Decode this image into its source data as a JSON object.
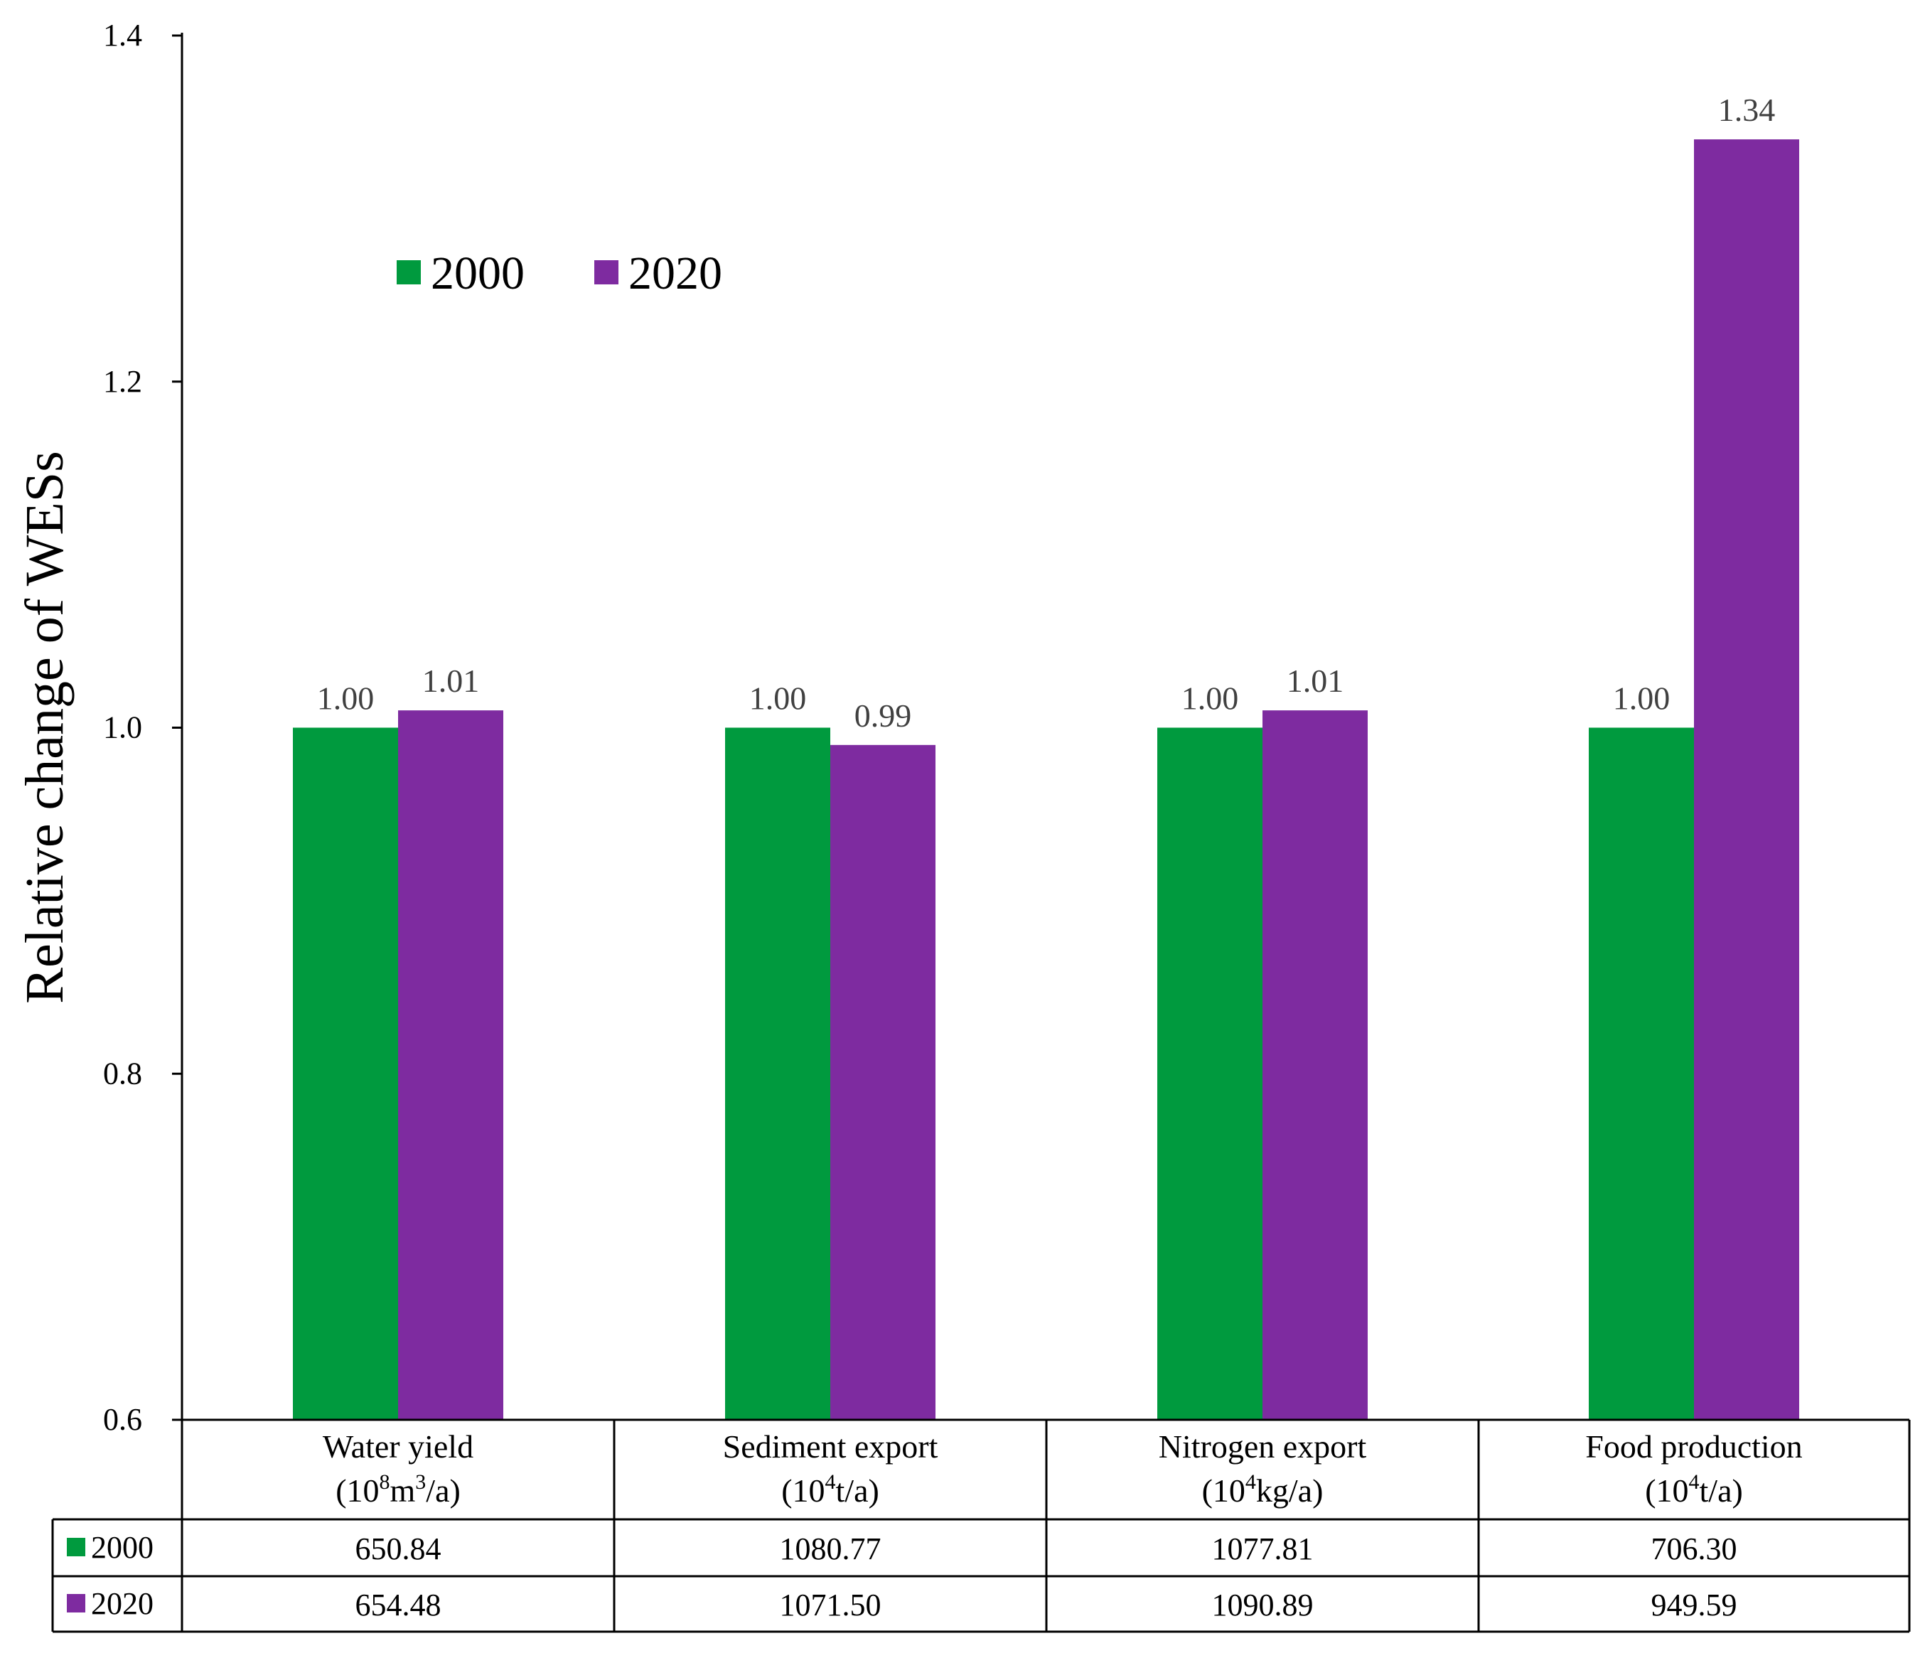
{
  "chart_data": {
    "type": "bar",
    "ylabel": "Relative change of  WESs",
    "ylim": [
      0.6,
      1.4
    ],
    "yticks": [
      "0.6",
      "0.8",
      "1.0",
      "1.2",
      "1.4"
    ],
    "ytick_values": [
      0.6,
      0.8,
      1.0,
      1.2,
      1.4
    ],
    "legend_position": "top-left",
    "categories": [
      {
        "name": "Water yield",
        "unit_pre": "(10",
        "unit_sup": "8",
        "unit_mid": "m",
        "unit_sup2": "3",
        "unit_post": "/a)"
      },
      {
        "name": "Sediment export",
        "unit_pre": "(10",
        "unit_sup": "4",
        "unit_mid": "t/a)",
        "unit_sup2": "",
        "unit_post": ""
      },
      {
        "name": "Nitrogen export",
        "unit_pre": "(10",
        "unit_sup": "4",
        "unit_mid": "kg/a)",
        "unit_sup2": "",
        "unit_post": ""
      },
      {
        "name": "Food production",
        "unit_pre": "(10",
        "unit_sup": "4",
        "unit_mid": "t/a)",
        "unit_sup2": "",
        "unit_post": ""
      }
    ],
    "series": [
      {
        "name": "2000",
        "color": "#009a3e",
        "values": [
          1.0,
          1.0,
          1.0,
          1.0
        ],
        "labels": [
          "1.00",
          "1.00",
          "1.00",
          "1.00"
        ],
        "table_values": [
          "650.84",
          "1080.77",
          "1077.81",
          "706.30"
        ]
      },
      {
        "name": "2020",
        "color": "#7e2ba0",
        "values": [
          1.01,
          0.99,
          1.01,
          1.34
        ],
        "labels": [
          "1.01",
          "0.99",
          "1.01",
          "1.34"
        ],
        "table_values": [
          "654.48",
          "1071.50",
          "1090.89",
          "949.59"
        ]
      }
    ]
  }
}
